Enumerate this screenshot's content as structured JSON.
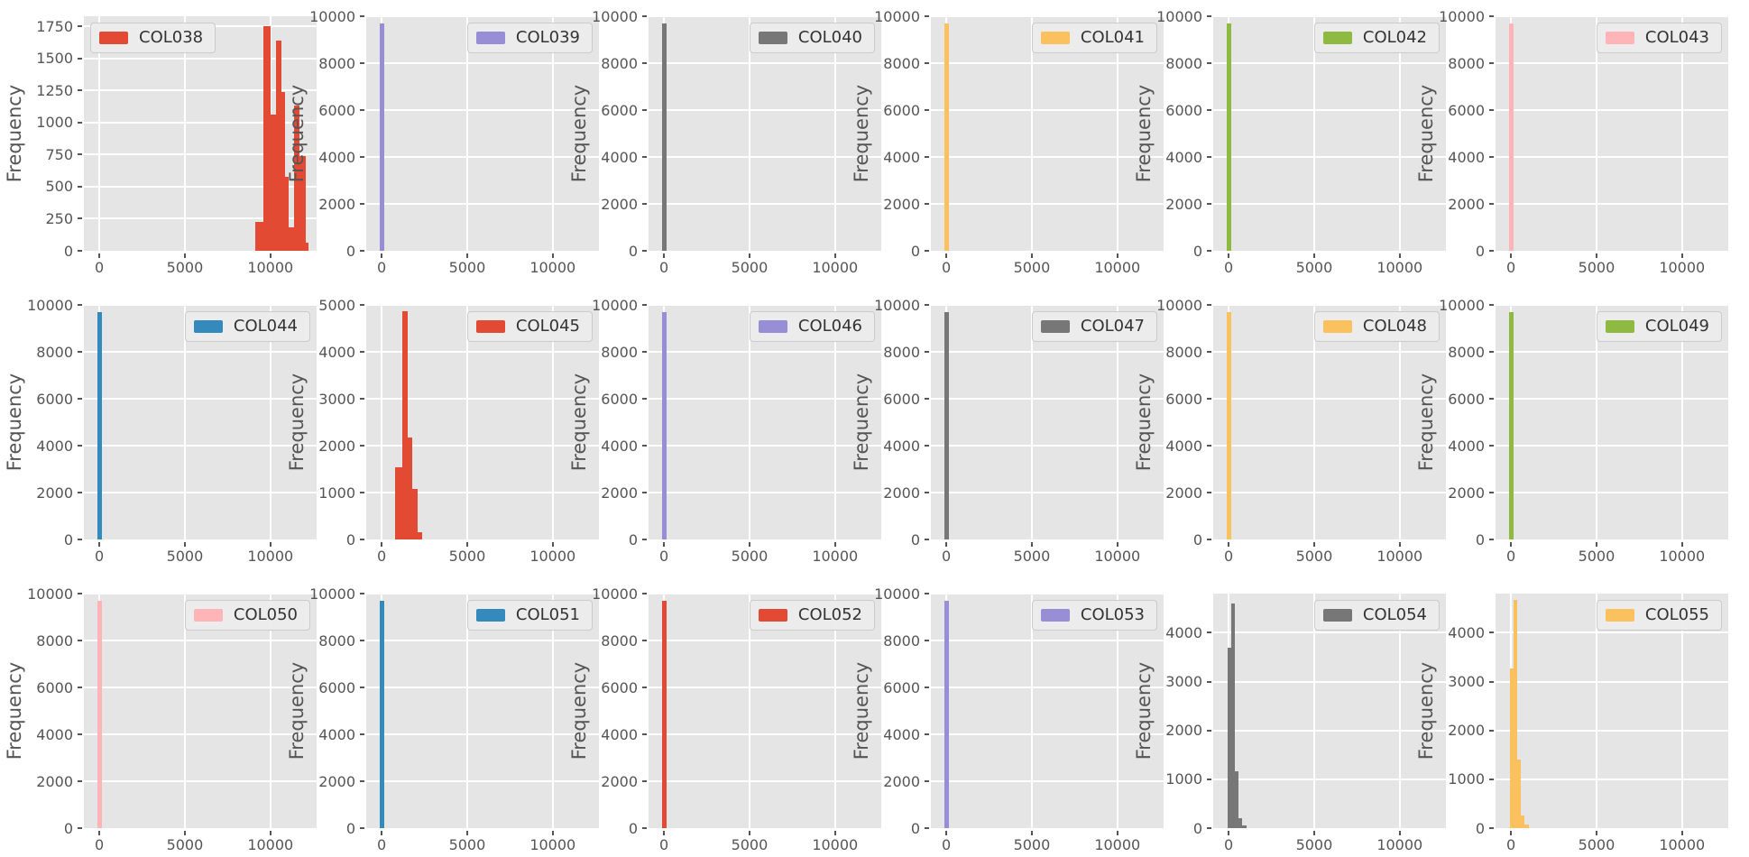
{
  "figure": {
    "background": "#ffffff",
    "axes_background": "#e5e5e5",
    "grid_color": "#ffffff",
    "tick_text_color": "#555555",
    "axis_label_color": "#555555",
    "legend_text_color": "#333333",
    "grid": {
      "rows": 3,
      "cols": 6
    }
  },
  "chart_data": [
    {
      "type": "histogram",
      "label": "COL038",
      "color": "#e24a33",
      "legend_loc": "upper-left",
      "ylabel": "Frequency",
      "xlim": [
        -900,
        12700
      ],
      "ylim": [
        0,
        1830
      ],
      "xticks": [
        0,
        5000,
        10000
      ],
      "yticks": [
        0,
        250,
        500,
        750,
        1000,
        1250,
        1500,
        1750
      ],
      "bins": [
        [
          9100,
          9600,
          225
        ],
        [
          9600,
          10000,
          1750
        ],
        [
          10000,
          10320,
          1060
        ],
        [
          10320,
          10660,
          1640
        ],
        [
          10660,
          10880,
          1240
        ],
        [
          10880,
          11070,
          580
        ],
        [
          11070,
          11370,
          180
        ],
        [
          11370,
          11720,
          1130
        ],
        [
          11720,
          12070,
          740
        ],
        [
          12070,
          12250,
          60
        ]
      ]
    },
    {
      "type": "histogram",
      "label": "COL039",
      "color": "#988ed5",
      "legend_loc": "upper-right",
      "ylabel": "Frequency",
      "xlim": [
        -900,
        12700
      ],
      "ylim": [
        0,
        10000
      ],
      "xticks": [
        0,
        5000,
        10000
      ],
      "yticks": [
        0,
        2000,
        4000,
        6000,
        8000,
        10000
      ],
      "bins": [
        [
          -100,
          170,
          9700
        ]
      ]
    },
    {
      "type": "histogram",
      "label": "COL040",
      "color": "#777777",
      "legend_loc": "upper-right",
      "ylabel": "Frequency",
      "xlim": [
        -900,
        12700
      ],
      "ylim": [
        0,
        10000
      ],
      "xticks": [
        0,
        5000,
        10000
      ],
      "yticks": [
        0,
        2000,
        4000,
        6000,
        8000,
        10000
      ],
      "bins": [
        [
          -100,
          170,
          9700
        ]
      ]
    },
    {
      "type": "histogram",
      "label": "COL041",
      "color": "#fbc15e",
      "legend_loc": "upper-right",
      "ylabel": "Frequency",
      "xlim": [
        -900,
        12700
      ],
      "ylim": [
        0,
        10000
      ],
      "xticks": [
        0,
        5000,
        10000
      ],
      "yticks": [
        0,
        2000,
        4000,
        6000,
        8000,
        10000
      ],
      "bins": [
        [
          -100,
          170,
          9700
        ]
      ]
    },
    {
      "type": "histogram",
      "label": "COL042",
      "color": "#8eba42",
      "legend_loc": "upper-right",
      "ylabel": "Frequency",
      "xlim": [
        -900,
        12700
      ],
      "ylim": [
        0,
        10000
      ],
      "xticks": [
        0,
        5000,
        10000
      ],
      "yticks": [
        0,
        2000,
        4000,
        6000,
        8000,
        10000
      ],
      "bins": [
        [
          -100,
          170,
          9700
        ]
      ]
    },
    {
      "type": "histogram",
      "label": "COL043",
      "color": "#ffb5b8",
      "legend_loc": "upper-right",
      "ylabel": "Frequency",
      "xlim": [
        -900,
        12700
      ],
      "ylim": [
        0,
        10000
      ],
      "xticks": [
        0,
        5000,
        10000
      ],
      "yticks": [
        0,
        2000,
        4000,
        6000,
        8000,
        10000
      ],
      "bins": [
        [
          -100,
          170,
          9700
        ]
      ]
    },
    {
      "type": "histogram",
      "label": "COL044",
      "color": "#348abd",
      "legend_loc": "upper-right",
      "ylabel": "Frequency",
      "xlim": [
        -900,
        12700
      ],
      "ylim": [
        0,
        10000
      ],
      "xticks": [
        0,
        5000,
        10000
      ],
      "yticks": [
        0,
        2000,
        4000,
        6000,
        8000,
        10000
      ],
      "bins": [
        [
          -100,
          170,
          9700
        ]
      ]
    },
    {
      "type": "histogram",
      "label": "COL045",
      "color": "#e24a33",
      "legend_loc": "upper-right",
      "ylabel": "Frequency",
      "xlim": [
        -900,
        12700
      ],
      "ylim": [
        0,
        5000
      ],
      "xticks": [
        0,
        5000,
        10000
      ],
      "yticks": [
        0,
        1000,
        2000,
        3000,
        4000,
        5000
      ],
      "bins": [
        [
          800,
          1200,
          1530
        ],
        [
          1200,
          1500,
          4870
        ],
        [
          1500,
          1800,
          2170
        ],
        [
          1800,
          2100,
          1070
        ],
        [
          2100,
          2350,
          150
        ]
      ]
    },
    {
      "type": "histogram",
      "label": "COL046",
      "color": "#988ed5",
      "legend_loc": "upper-right",
      "ylabel": "Frequency",
      "xlim": [
        -900,
        12700
      ],
      "ylim": [
        0,
        10000
      ],
      "xticks": [
        0,
        5000,
        10000
      ],
      "yticks": [
        0,
        2000,
        4000,
        6000,
        8000,
        10000
      ],
      "bins": [
        [
          -100,
          170,
          9700
        ]
      ]
    },
    {
      "type": "histogram",
      "label": "COL047",
      "color": "#777777",
      "legend_loc": "upper-right",
      "ylabel": "Frequency",
      "xlim": [
        -900,
        12700
      ],
      "ylim": [
        0,
        10000
      ],
      "xticks": [
        0,
        5000,
        10000
      ],
      "yticks": [
        0,
        2000,
        4000,
        6000,
        8000,
        10000
      ],
      "bins": [
        [
          -100,
          170,
          9700
        ]
      ]
    },
    {
      "type": "histogram",
      "label": "COL048",
      "color": "#fbc15e",
      "legend_loc": "upper-right",
      "ylabel": "Frequency",
      "xlim": [
        -900,
        12700
      ],
      "ylim": [
        0,
        10000
      ],
      "xticks": [
        0,
        5000,
        10000
      ],
      "yticks": [
        0,
        2000,
        4000,
        6000,
        8000,
        10000
      ],
      "bins": [
        [
          -100,
          170,
          9700
        ]
      ]
    },
    {
      "type": "histogram",
      "label": "COL049",
      "color": "#8eba42",
      "legend_loc": "upper-right",
      "ylabel": "Frequency",
      "xlim": [
        -900,
        12700
      ],
      "ylim": [
        0,
        10000
      ],
      "xticks": [
        0,
        5000,
        10000
      ],
      "yticks": [
        0,
        2000,
        4000,
        6000,
        8000,
        10000
      ],
      "bins": [
        [
          -100,
          170,
          9700
        ]
      ]
    },
    {
      "type": "histogram",
      "label": "COL050",
      "color": "#ffb5b8",
      "legend_loc": "upper-right",
      "ylabel": "Frequency",
      "xlim": [
        -900,
        12700
      ],
      "ylim": [
        0,
        10000
      ],
      "xticks": [
        0,
        5000,
        10000
      ],
      "yticks": [
        0,
        2000,
        4000,
        6000,
        8000,
        10000
      ],
      "bins": [
        [
          -100,
          170,
          9700
        ]
      ]
    },
    {
      "type": "histogram",
      "label": "COL051",
      "color": "#348abd",
      "legend_loc": "upper-right",
      "ylabel": "Frequency",
      "xlim": [
        -900,
        12700
      ],
      "ylim": [
        0,
        10000
      ],
      "xticks": [
        0,
        5000,
        10000
      ],
      "yticks": [
        0,
        2000,
        4000,
        6000,
        8000,
        10000
      ],
      "bins": [
        [
          -100,
          170,
          9700
        ]
      ]
    },
    {
      "type": "histogram",
      "label": "COL052",
      "color": "#e24a33",
      "legend_loc": "upper-right",
      "ylabel": "Frequency",
      "xlim": [
        -900,
        12700
      ],
      "ylim": [
        0,
        10000
      ],
      "xticks": [
        0,
        5000,
        10000
      ],
      "yticks": [
        0,
        2000,
        4000,
        6000,
        8000,
        10000
      ],
      "bins": [
        [
          -100,
          170,
          9700
        ]
      ]
    },
    {
      "type": "histogram",
      "label": "COL053",
      "color": "#988ed5",
      "legend_loc": "upper-right",
      "ylabel": "Frequency",
      "xlim": [
        -900,
        12700
      ],
      "ylim": [
        0,
        10000
      ],
      "xticks": [
        0,
        5000,
        10000
      ],
      "yticks": [
        0,
        2000,
        4000,
        6000,
        8000,
        10000
      ],
      "bins": [
        [
          -100,
          170,
          9700
        ]
      ]
    },
    {
      "type": "histogram",
      "label": "COL054",
      "color": "#777777",
      "legend_loc": "upper-right",
      "ylabel": "Frequency",
      "xlim": [
        -900,
        12700
      ],
      "ylim": [
        0,
        4800
      ],
      "xticks": [
        0,
        5000,
        10000
      ],
      "yticks": [
        0,
        1000,
        2000,
        3000,
        4000
      ],
      "bins": [
        [
          -50,
          160,
          3700
        ],
        [
          160,
          370,
          4600
        ],
        [
          370,
          580,
          1170
        ],
        [
          580,
          790,
          210
        ],
        [
          790,
          1050,
          60
        ]
      ]
    },
    {
      "type": "histogram",
      "label": "COL055",
      "color": "#fbc15e",
      "legend_loc": "upper-right",
      "ylabel": "Frequency",
      "xlim": [
        -900,
        12700
      ],
      "ylim": [
        0,
        4800
      ],
      "xticks": [
        0,
        5000,
        10000
      ],
      "yticks": [
        0,
        1000,
        2000,
        3000,
        4000
      ],
      "bins": [
        [
          -50,
          160,
          3270
        ],
        [
          160,
          370,
          4680
        ],
        [
          370,
          580,
          1410
        ],
        [
          580,
          790,
          250
        ],
        [
          790,
          1050,
          70
        ]
      ]
    }
  ]
}
